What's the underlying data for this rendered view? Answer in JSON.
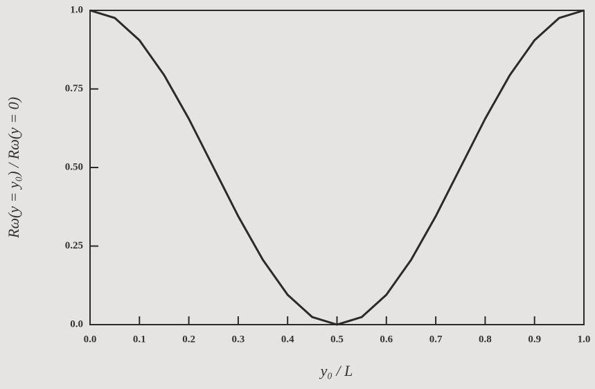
{
  "chart_data": {
    "type": "line",
    "x_label": "y₀ / L",
    "y_label": "Rω(y = y₀) / Rω(y = 0)",
    "x": [
      0,
      0.05,
      0.1,
      0.15,
      0.2,
      0.25,
      0.3,
      0.35,
      0.4,
      0.45,
      0.5,
      0.55,
      0.6,
      0.65,
      0.7,
      0.75,
      0.8,
      0.85,
      0.9,
      0.95,
      1.0
    ],
    "series": [
      {
        "color": "#2a2a2a",
        "values": [
          1,
          0.976,
          0.905,
          0.794,
          0.655,
          0.5,
          0.345,
          0.206,
          0.095,
          0.024,
          0,
          0.024,
          0.095,
          0.206,
          0.345,
          0.5,
          0.655,
          0.794,
          0.905,
          0.976,
          1
        ]
      }
    ],
    "xlim": [
      0,
      1.0
    ],
    "ylim": [
      0,
      1.0
    ],
    "xticks": [
      {
        "value": 0,
        "label": "0.0"
      },
      0.1,
      0.2,
      0.3,
      0.4,
      0.5,
      0.6,
      0.7,
      0.8,
      0.9,
      {
        "value": 1,
        "label": "1.0"
      }
    ],
    "yticks": [
      {
        "value": 0,
        "label": "0.0"
      },
      0.25,
      {
        "value": 0.5,
        "label": "0.50"
      },
      0.75,
      {
        "value": 1,
        "label": "1.0"
      }
    ],
    "grid": false
  }
}
